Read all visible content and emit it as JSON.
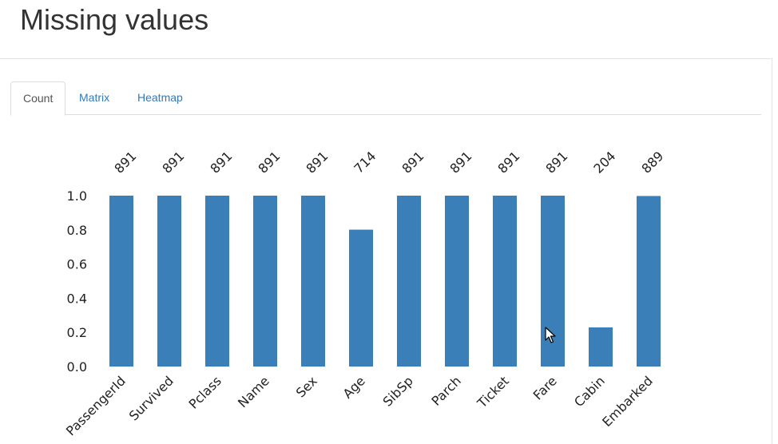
{
  "page": {
    "title": "Missing values"
  },
  "tabs": [
    {
      "label": "Count",
      "active": true
    },
    {
      "label": "Matrix",
      "active": false
    },
    {
      "label": "Heatmap",
      "active": false
    }
  ],
  "colors": {
    "bar": "#3a7fb8",
    "link": "#337ab7",
    "active_tab_text": "#555555"
  },
  "chart_data": {
    "type": "bar",
    "categories": [
      "PassengerId",
      "Survived",
      "Pclass",
      "Name",
      "Sex",
      "Age",
      "SibSp",
      "Parch",
      "Ticket",
      "Fare",
      "Cabin",
      "Embarked"
    ],
    "values": [
      1.0,
      1.0,
      1.0,
      1.0,
      1.0,
      0.801,
      1.0,
      1.0,
      1.0,
      1.0,
      0.229,
      0.998
    ],
    "count_labels": [
      "891",
      "891",
      "891",
      "891",
      "891",
      "714",
      "891",
      "891",
      "891",
      "891",
      "204",
      "889"
    ],
    "yticks": [
      "0.0",
      "0.2",
      "0.4",
      "0.6",
      "0.8",
      "1.0"
    ],
    "ylim": [
      0,
      1
    ],
    "grid": false,
    "title": "",
    "xlabel": "",
    "ylabel": ""
  }
}
